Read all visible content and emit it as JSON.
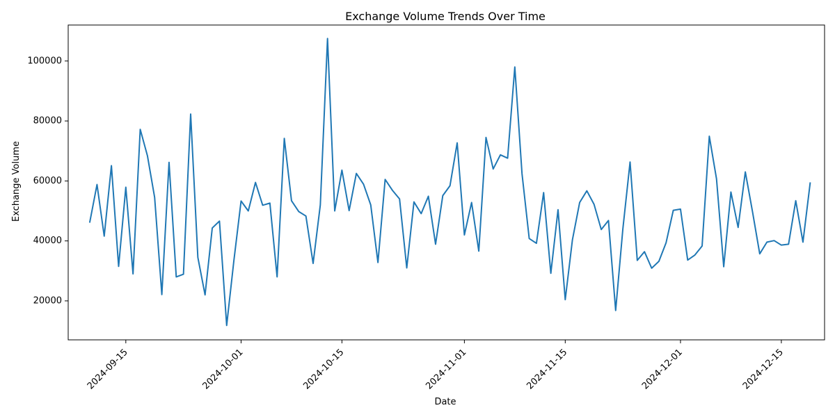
{
  "chart_data": {
    "type": "line",
    "title": "Exchange Volume Trends Over Time",
    "xlabel": "Date",
    "ylabel": "Exchange Volume",
    "x_start": "2024-09-10",
    "x_step_days": 1,
    "xlim": [
      "2024-09-07",
      "2024-12-21"
    ],
    "ylim": [
      7000,
      112000
    ],
    "x_ticks": [
      "2024-09-15",
      "2024-10-01",
      "2024-10-15",
      "2024-11-01",
      "2024-11-15",
      "2024-12-01",
      "2024-12-15"
    ],
    "y_ticks": [
      20000,
      40000,
      60000,
      80000,
      100000
    ],
    "grid": false,
    "line_color": "#1f77b4",
    "series": [
      {
        "values": [
          46300,
          58800,
          41600,
          65100,
          31500,
          57900,
          29000,
          77200,
          68400,
          54500,
          22100,
          66200,
          28000,
          28900,
          82300,
          34500,
          22000,
          44300,
          46600,
          11800,
          33400,
          53300,
          50000,
          59500,
          51900,
          52600,
          28000,
          74200,
          53400,
          49800,
          48300,
          32500,
          52000,
          107500,
          50000,
          63600,
          50100,
          62500,
          58900,
          52000,
          32800,
          60500,
          56900,
          54000,
          31000,
          53000,
          49100,
          54900,
          38900,
          55100,
          58400,
          72700,
          42000,
          52800,
          36600,
          74500,
          64000,
          68700,
          67600,
          98000,
          62400,
          40800,
          39200,
          56100,
          29200,
          50400,
          20400,
          40400,
          52800,
          56700,
          52200,
          43800,
          46800,
          16800,
          44000,
          66300,
          33500,
          36400,
          30900,
          33200,
          39400,
          50200,
          50600,
          33600,
          35300,
          38300,
          74900,
          60700,
          31400,
          56300,
          44500,
          63000,
          49700,
          35700,
          39600,
          40100,
          38600,
          38900,
          53400,
          39600,
          59300
        ]
      }
    ]
  }
}
